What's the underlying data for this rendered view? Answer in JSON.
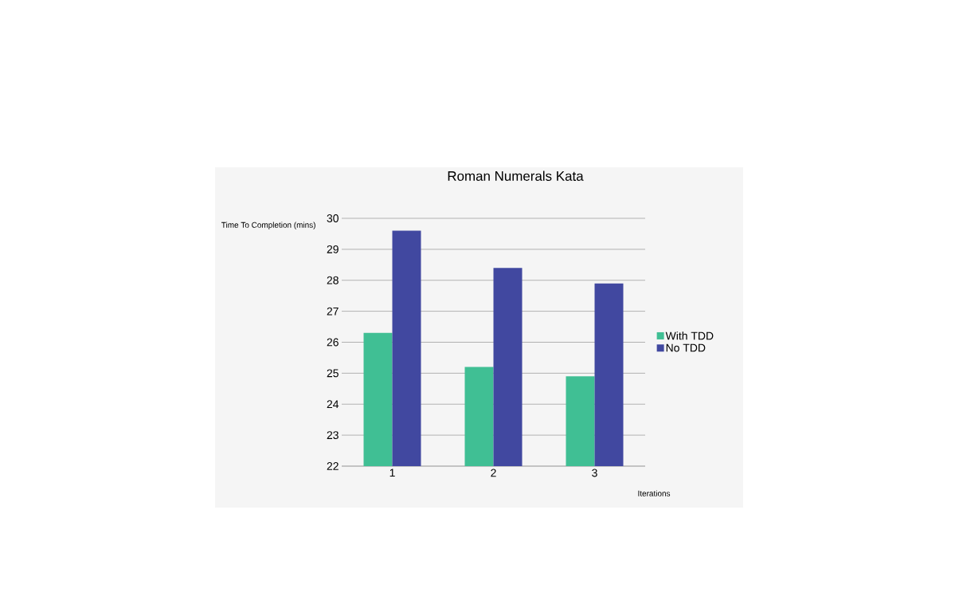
{
  "chart_data": {
    "type": "bar",
    "title": "Roman Numerals Kata",
    "xlabel": "Iterations",
    "ylabel": "Time To Completion (mins)",
    "categories": [
      "1",
      "2",
      "3"
    ],
    "series": [
      {
        "name": "With TDD",
        "color": "#40bf94",
        "values": [
          26.3,
          25.2,
          24.9
        ]
      },
      {
        "name": "No TDD",
        "color": "#4148a0",
        "values": [
          29.6,
          28.4,
          27.9
        ]
      }
    ],
    "ylim": [
      22,
      30
    ],
    "yticks": [
      22,
      23,
      24,
      25,
      26,
      27,
      28,
      29,
      30
    ],
    "grid": "y",
    "legend": "right"
  }
}
